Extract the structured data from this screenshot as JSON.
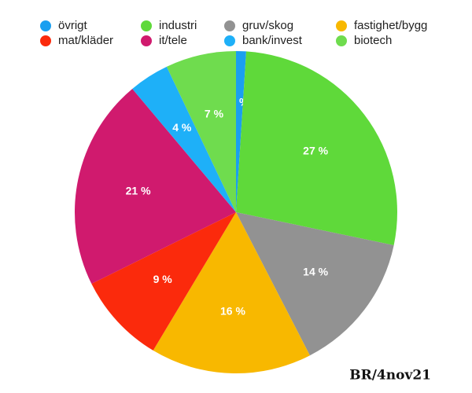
{
  "chart_data": {
    "type": "pie",
    "categories": [
      "övrigt",
      "industri",
      "gruv/skog",
      "fastighet/bygg",
      "mat/kläder",
      "it/tele",
      "bank/invest",
      "biotech"
    ],
    "values": [
      1,
      27,
      14,
      16,
      9,
      21,
      4,
      7
    ],
    "value_labels": [
      "1 %",
      "27 %",
      "14 %",
      "16 %",
      "9 %",
      "21 %",
      "4 %",
      "7 %"
    ],
    "colors": [
      "#1a9ff0",
      "#5fd93a",
      "#929292",
      "#f8b800",
      "#fb2a0c",
      "#d01a6e",
      "#1eb0f8",
      "#6fdc4e"
    ],
    "legend_order": [
      0,
      1,
      2,
      3,
      4,
      5,
      6,
      7
    ],
    "annotation": "BR/4nov21"
  }
}
